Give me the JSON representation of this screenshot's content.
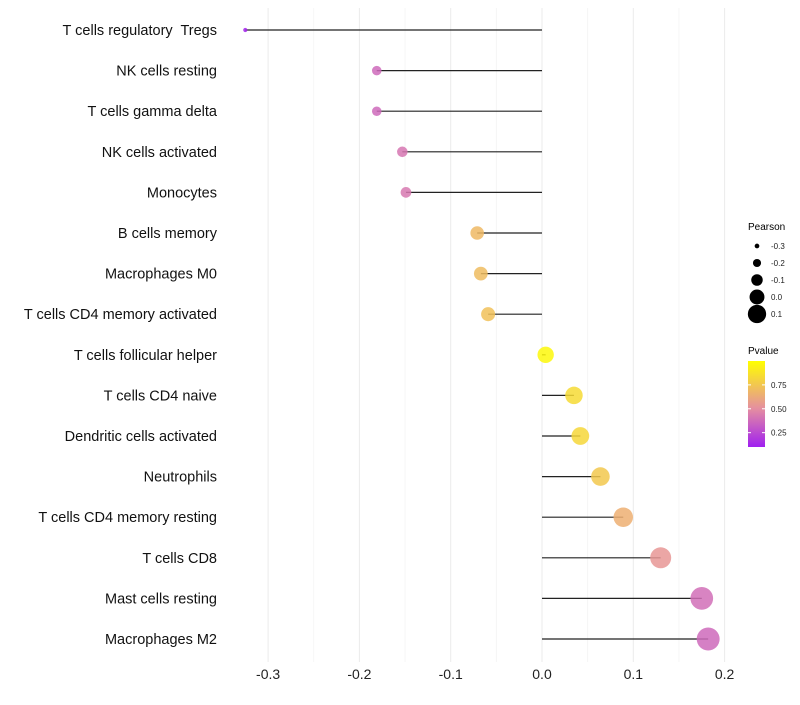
{
  "chart_data": {
    "type": "lollipop",
    "title": "",
    "xlabel": "",
    "ylabel": "",
    "xlim": [
      -0.33,
      0.205
    ],
    "x_ticks": [
      -0.3,
      -0.2,
      -0.1,
      0.0,
      0.1,
      0.2
    ],
    "x_tick_labels": [
      "-0.3",
      "-0.2",
      "-0.1",
      "0.0",
      "0.1",
      "0.2"
    ],
    "grid": true,
    "categories": [
      "T cells regulatory  Tregs",
      "NK cells resting",
      "T cells gamma delta",
      "NK cells activated",
      "Monocytes",
      "B cells memory",
      "Macrophages M0",
      "T cells CD4 memory activated",
      "T cells follicular helper",
      "T cells CD4 naive",
      "Dendritic cells activated",
      "Neutrophils",
      "T cells CD4 memory resting",
      "T cells CD8",
      "Mast cells resting",
      "Macrophages M2"
    ],
    "pearson": [
      -0.325,
      -0.181,
      -0.181,
      -0.153,
      -0.149,
      -0.071,
      -0.067,
      -0.059,
      0.004,
      0.035,
      0.042,
      0.064,
      0.089,
      0.13,
      0.175,
      0.182
    ],
    "pvalue": [
      0.12,
      0.4,
      0.4,
      0.45,
      0.46,
      0.72,
      0.73,
      0.75,
      0.97,
      0.85,
      0.84,
      0.78,
      0.68,
      0.58,
      0.42,
      0.4
    ],
    "legend": {
      "placement": "right",
      "size_title": "Pearson",
      "size_values": [
        -0.3,
        -0.2,
        -0.1,
        0.0,
        0.1
      ],
      "size_labels": [
        "-0.3",
        "-0.2",
        "-0.1",
        "0.0",
        "0.1"
      ],
      "color_title": "Pvalue",
      "color_ticks": [
        0.25,
        0.5,
        0.75
      ],
      "color_tick_labels": [
        "0.25",
        "0.50",
        "0.75"
      ],
      "color_range": [
        0.1,
        1.0
      ],
      "color_low": "#a020f0",
      "color_mid": "#e58fa0",
      "color_high": "#ffff00"
    }
  }
}
